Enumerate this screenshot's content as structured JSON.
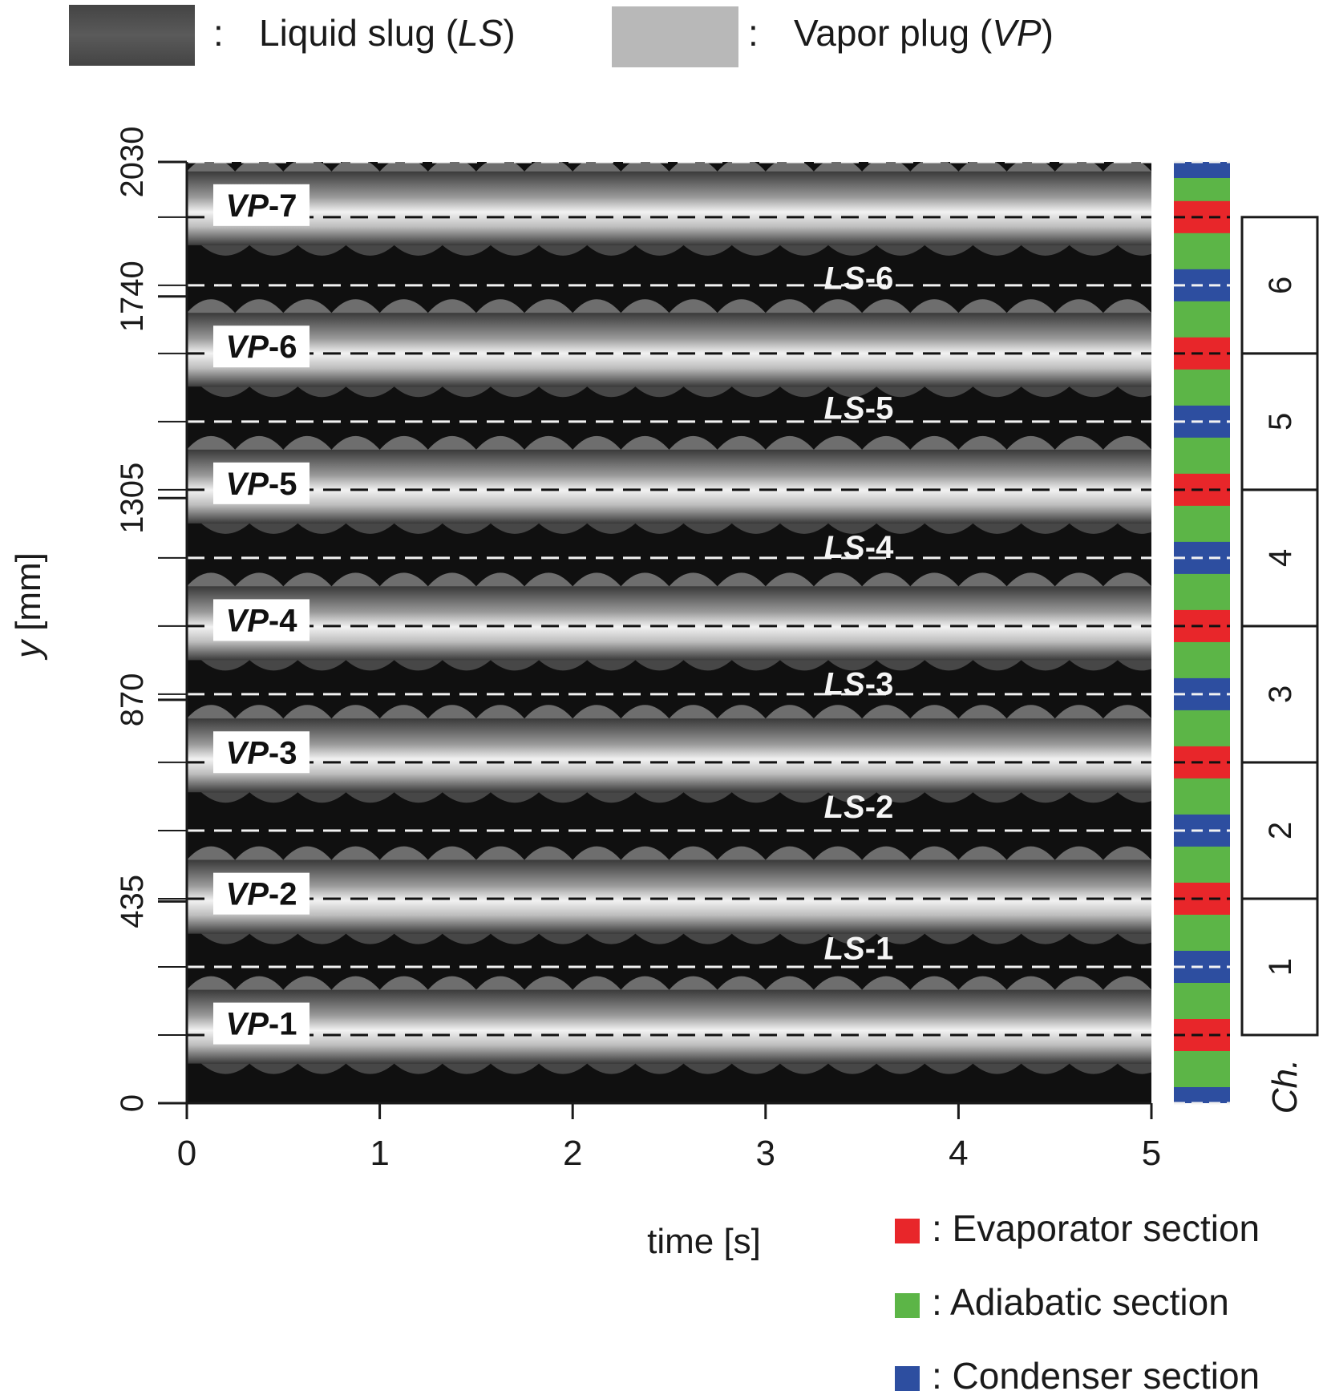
{
  "chart_data": {
    "type": "heatmap",
    "title": "",
    "xlabel": "time  [s]",
    "ylabel_symbol": "y",
    "ylabel_unit": "[mm]",
    "xlim": [
      0,
      5
    ],
    "ylim": [
      0,
      2030
    ],
    "x_ticks": [
      0,
      1,
      2,
      3,
      4,
      5
    ],
    "x_tick_labels": [
      "0",
      "1",
      "2",
      "3",
      "4",
      "5"
    ],
    "y_ticks": [
      0,
      435,
      870,
      1305,
      1740,
      2030
    ],
    "y_tick_labels": [
      "0",
      "435",
      "870",
      "1305",
      "1740",
      "2030"
    ],
    "phase_legend": [
      {
        "symbol": "LS",
        "prefix": "Liquid slug (",
        "suffix": ")",
        "color": "#4f4f4f"
      },
      {
        "symbol": "VP",
        "prefix": "Vapor plug (",
        "suffix": ")",
        "color": "#b8b8b8"
      }
    ],
    "vapor_plugs": [
      {
        "prefix": "VP",
        "num": "-1",
        "y_center": 165
      },
      {
        "prefix": "VP",
        "num": "-2",
        "y_center": 445
      },
      {
        "prefix": "VP",
        "num": "-3",
        "y_center": 750
      },
      {
        "prefix": "VP",
        "num": "-4",
        "y_center": 1035
      },
      {
        "prefix": "VP",
        "num": "-5",
        "y_center": 1330
      },
      {
        "prefix": "VP",
        "num": "-6",
        "y_center": 1625
      },
      {
        "prefix": "VP",
        "num": "-7",
        "y_center": 1930
      }
    ],
    "liquid_slugs": [
      {
        "prefix": "LS",
        "num": "-1",
        "y_center": 335
      },
      {
        "prefix": "LS",
        "num": "-2",
        "y_center": 640
      },
      {
        "prefix": "LS",
        "num": "-3",
        "y_center": 905
      },
      {
        "prefix": "LS",
        "num": "-4",
        "y_center": 1200
      },
      {
        "prefix": "LS",
        "num": "-5",
        "y_center": 1500
      },
      {
        "prefix": "LS",
        "num": "-6",
        "y_center": 1780
      }
    ],
    "evaporator_y": [
      147,
      441,
      735,
      1029,
      1323,
      1617,
      1911
    ],
    "condenser_y": [
      0,
      294,
      588,
      882,
      1176,
      1470,
      1764,
      2030
    ],
    "channels": [
      "1",
      "2",
      "3",
      "4",
      "5",
      "6"
    ],
    "channel_axis_label": "Ch.",
    "section_legend": [
      {
        "label": ": Evaporator section",
        "color": "#e8262a"
      },
      {
        "label": ": Adiabatic section",
        "color": "#5cb547"
      },
      {
        "label": ": Condenser section",
        "color": "#2d4ea0"
      }
    ],
    "oscillation_cycles": 20
  }
}
